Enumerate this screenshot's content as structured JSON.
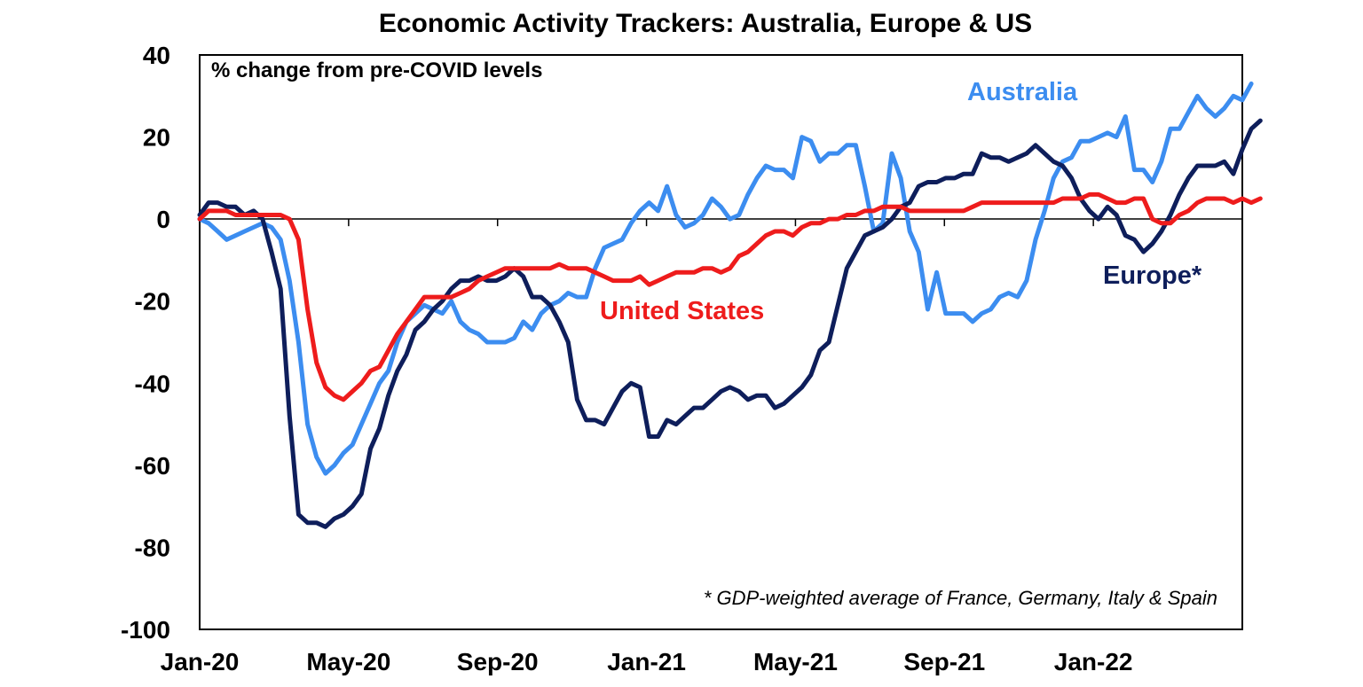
{
  "chart_data": {
    "type": "line",
    "title": "Economic Activity Trackers: Australia, Europe & US",
    "subtitle": "% change from pre-COVID levels",
    "footnote": "* GDP-weighted average of France, Germany, Italy & Spain",
    "ylim": [
      -100,
      40
    ],
    "yticks": [
      "40",
      "20",
      "0",
      "-20",
      "-40",
      "-60",
      "-80",
      "-100"
    ],
    "yvalues": [
      40,
      20,
      0,
      -20,
      -40,
      -60,
      -80,
      -100
    ],
    "xticks": [
      "Jan-20",
      "May-20",
      "Sep-20",
      "Jan-21",
      "May-21",
      "Sep-21",
      "Jan-22"
    ],
    "x_count": 117,
    "grid": false,
    "series": [
      {
        "name": "Australia",
        "color": "#3C8DF0",
        "values": [
          0,
          -1,
          -3,
          -5,
          -4,
          -3,
          -2,
          -1,
          -2,
          -5,
          -15,
          -30,
          -50,
          -58,
          -62,
          -60,
          -57,
          -55,
          -50,
          -45,
          -40,
          -37,
          -30,
          -25,
          -23,
          -21,
          -22,
          -23,
          -20,
          -25,
          -27,
          -28,
          -30,
          -30,
          -30,
          -29,
          -25,
          -27,
          -23,
          -21,
          -20,
          -18,
          -19,
          -19,
          -12,
          -7,
          -6,
          -5,
          -1,
          2,
          4,
          2,
          8,
          1,
          -2,
          -1,
          1,
          5,
          3,
          0,
          1,
          6,
          10,
          13,
          12,
          12,
          10,
          20,
          19,
          14,
          16,
          16,
          18,
          18,
          8,
          -3,
          -1,
          16,
          10,
          -3,
          -8,
          -22,
          -13,
          -23,
          -23,
          -23,
          -25,
          -23,
          -22,
          -19,
          -18,
          -19,
          -15,
          -5,
          2,
          10,
          14,
          15,
          19,
          19,
          20,
          21,
          20,
          25,
          12,
          12,
          9,
          14,
          22,
          22,
          26,
          30,
          27,
          25,
          27,
          30,
          29,
          33
        ]
      },
      {
        "name": "Europe*",
        "color": "#0E1E5B",
        "values": [
          1,
          4,
          4,
          3,
          3,
          1,
          2,
          0,
          -8,
          -17,
          -48,
          -72,
          -74,
          -74,
          -75,
          -73,
          -72,
          -70,
          -67,
          -56,
          -51,
          -43,
          -37,
          -33,
          -27,
          -25,
          -22,
          -20,
          -17,
          -15,
          -15,
          -14,
          -15,
          -15,
          -14,
          -12,
          -14,
          -19,
          -19,
          -21,
          -25,
          -30,
          -44,
          -49,
          -49,
          -50,
          -46,
          -42,
          -40,
          -41,
          -53,
          -53,
          -49,
          -50,
          -48,
          -46,
          -46,
          -44,
          -42,
          -41,
          -42,
          -44,
          -43,
          -43,
          -46,
          -45,
          -43,
          -41,
          -38,
          -32,
          -30,
          -21,
          -12,
          -8,
          -4,
          -3,
          -2,
          0,
          3,
          4,
          8,
          9,
          9,
          10,
          10,
          11,
          11,
          16,
          15,
          15,
          14,
          15,
          16,
          18,
          16,
          14,
          13,
          10,
          5,
          2,
          0,
          3,
          1,
          -4,
          -5,
          -8,
          -6,
          -3,
          1,
          6,
          10,
          13,
          13,
          13,
          14,
          11,
          17,
          22,
          24
        ]
      },
      {
        "name": "United States",
        "color": "#EE1C1C",
        "values": [
          0,
          2,
          2,
          2,
          1,
          1,
          1,
          1,
          1,
          1,
          0,
          -5,
          -22,
          -35,
          -41,
          -43,
          -44,
          -42,
          -40,
          -37,
          -36,
          -32,
          -28,
          -25,
          -22,
          -19,
          -19,
          -19,
          -19,
          -18,
          -17,
          -15,
          -14,
          -13,
          -12,
          -12,
          -12,
          -12,
          -12,
          -12,
          -11,
          -12,
          -12,
          -12,
          -13,
          -14,
          -15,
          -15,
          -15,
          -14,
          -16,
          -15,
          -14,
          -13,
          -13,
          -13,
          -12,
          -12,
          -13,
          -12,
          -9,
          -8,
          -6,
          -4,
          -3,
          -3,
          -4,
          -2,
          -1,
          -1,
          0,
          0,
          1,
          1,
          2,
          2,
          3,
          3,
          3,
          2,
          2,
          2,
          2,
          2,
          2,
          2,
          3,
          4,
          4,
          4,
          4,
          4,
          4,
          4,
          4,
          4,
          5,
          5,
          5,
          6,
          6,
          5,
          4,
          4,
          5,
          5,
          0,
          -1,
          -1,
          1,
          2,
          4,
          5,
          5,
          5,
          4,
          5,
          4,
          5
        ]
      }
    ],
    "series_labels": [
      "Australia",
      "Europe*",
      "United States"
    ]
  }
}
